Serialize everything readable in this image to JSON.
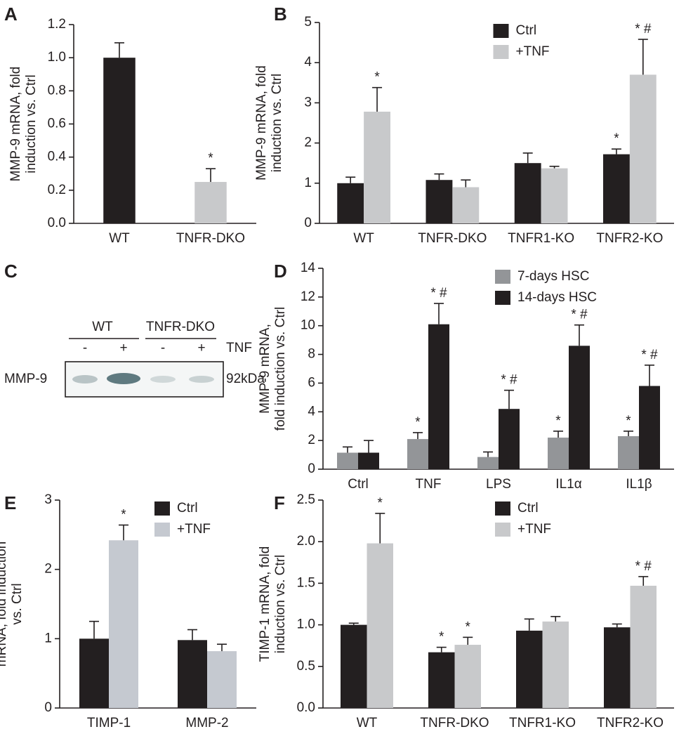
{
  "chart_data": [
    {
      "type": "bar",
      "label": "A",
      "ylabel": [
        "MMP-9 mRNA, fold",
        "induction vs. Ctrl"
      ],
      "categories": [
        "WT",
        "TNFR-DKO"
      ],
      "values": [
        1.0,
        0.25
      ],
      "errors": [
        0.09,
        0.08
      ],
      "colors": [
        "#231f20",
        "#c8c9cb"
      ],
      "annotations": [
        null,
        "*"
      ],
      "ylim": [
        0,
        1.2
      ],
      "yticks": [
        {
          "value": 0,
          "label": "0.0"
        },
        0.2,
        0.4,
        0.6,
        0.8,
        {
          "value": 1,
          "label": "1.0"
        },
        1.2
      ]
    },
    {
      "type": "grouped-bar",
      "label": "B",
      "ylabel": [
        "MMP-9 mRNA, fold",
        "induction vs. Ctrl"
      ],
      "categories": [
        "WT",
        "TNFR-DKO",
        "TNFR1-KO",
        "TNFR2-KO"
      ],
      "legend": "upper center",
      "series": [
        {
          "name": "Ctrl",
          "color": "#231f20",
          "values": [
            1.0,
            1.08,
            1.5,
            1.72
          ],
          "errors": [
            0.15,
            0.15,
            0.25,
            0.13
          ],
          "annotations": [
            null,
            null,
            null,
            "*"
          ]
        },
        {
          "name": "+TNF",
          "color": "#c8c9cb",
          "values": [
            2.78,
            0.9,
            1.37,
            3.7
          ],
          "errors": [
            0.6,
            0.18,
            0.05,
            0.88
          ],
          "annotations": [
            "*",
            null,
            null,
            "* #"
          ]
        }
      ],
      "ylim": [
        0,
        5
      ],
      "yticks": [
        0,
        1,
        2,
        3,
        4,
        5
      ]
    },
    {
      "type": "grouped-bar",
      "label": "D",
      "ylabel": [
        "MMP-9 mRNA,",
        "fold induction vs. Ctrl"
      ],
      "categories": [
        "Ctrl",
        "TNF",
        "LPS",
        "IL1α",
        "IL1β"
      ],
      "legend": "upper center",
      "series": [
        {
          "name": "7-days HSC",
          "color": "#939598",
          "values": [
            1.15,
            2.1,
            0.85,
            2.2,
            2.3
          ],
          "errors": [
            0.4,
            0.45,
            0.35,
            0.45,
            0.35
          ],
          "annotations": [
            null,
            "*",
            null,
            "*",
            "*"
          ]
        },
        {
          "name": "14-days HSC",
          "color": "#231f20",
          "values": [
            1.15,
            10.1,
            4.2,
            8.6,
            5.8
          ],
          "errors": [
            0.85,
            1.45,
            1.3,
            1.45,
            1.45
          ],
          "annotations": [
            null,
            "* #",
            "* #",
            "* #",
            "* #"
          ]
        }
      ],
      "ylim": [
        0,
        14
      ],
      "yticks": [
        0,
        2,
        4,
        6,
        8,
        10,
        12,
        14
      ]
    },
    {
      "type": "grouped-bar",
      "label": "E",
      "ylabel": [
        "mRNA, fold induction",
        "vs. Ctrl"
      ],
      "categories": [
        "TIMP-1",
        "MMP-2"
      ],
      "legend": "upper center",
      "series": [
        {
          "name": "Ctrl",
          "color": "#231f20",
          "values": [
            1.0,
            0.98
          ],
          "errors": [
            0.25,
            0.15
          ],
          "annotations": [
            null,
            null
          ]
        },
        {
          "name": "+TNF",
          "color": "#c5c9d0",
          "values": [
            2.42,
            0.82
          ],
          "errors": [
            0.22,
            0.1
          ],
          "annotations": [
            "*",
            null
          ]
        }
      ],
      "ylim": [
        0,
        3
      ],
      "yticks": [
        0,
        1,
        2,
        3
      ]
    },
    {
      "type": "grouped-bar",
      "label": "F",
      "ylabel": [
        "TIMP-1 mRNA, fold",
        "induction vs. Ctrl"
      ],
      "categories": [
        "WT",
        "TNFR-DKO",
        "TNFR1-KO",
        "TNFR2-KO"
      ],
      "legend": "upper center",
      "series": [
        {
          "name": "Ctrl",
          "color": "#231f20",
          "values": [
            1.0,
            0.67,
            0.93,
            0.97
          ],
          "errors": [
            0.02,
            0.06,
            0.14,
            0.04
          ],
          "annotations": [
            null,
            "*",
            null,
            null
          ]
        },
        {
          "name": "+TNF",
          "color": "#c8c9cb",
          "values": [
            1.98,
            0.76,
            1.04,
            1.47
          ],
          "errors": [
            0.36,
            0.09,
            0.06,
            0.11
          ],
          "annotations": [
            "*",
            "*",
            null,
            "* #"
          ]
        }
      ],
      "ylim": [
        0,
        2.5
      ],
      "yticks": [
        {
          "value": 0,
          "label": "0.0"
        },
        0.5,
        {
          "value": 1,
          "label": "1.0"
        },
        1.5,
        {
          "value": 2,
          "label": "2.0"
        },
        2.5
      ]
    }
  ],
  "blot": {
    "label": "C",
    "groups": [
      "WT",
      "TNFR-DKO"
    ],
    "lanes": [
      "-",
      "+",
      "-",
      "+"
    ],
    "treatment": "TNF",
    "protein": "MMP-9",
    "size": "92kDa"
  }
}
